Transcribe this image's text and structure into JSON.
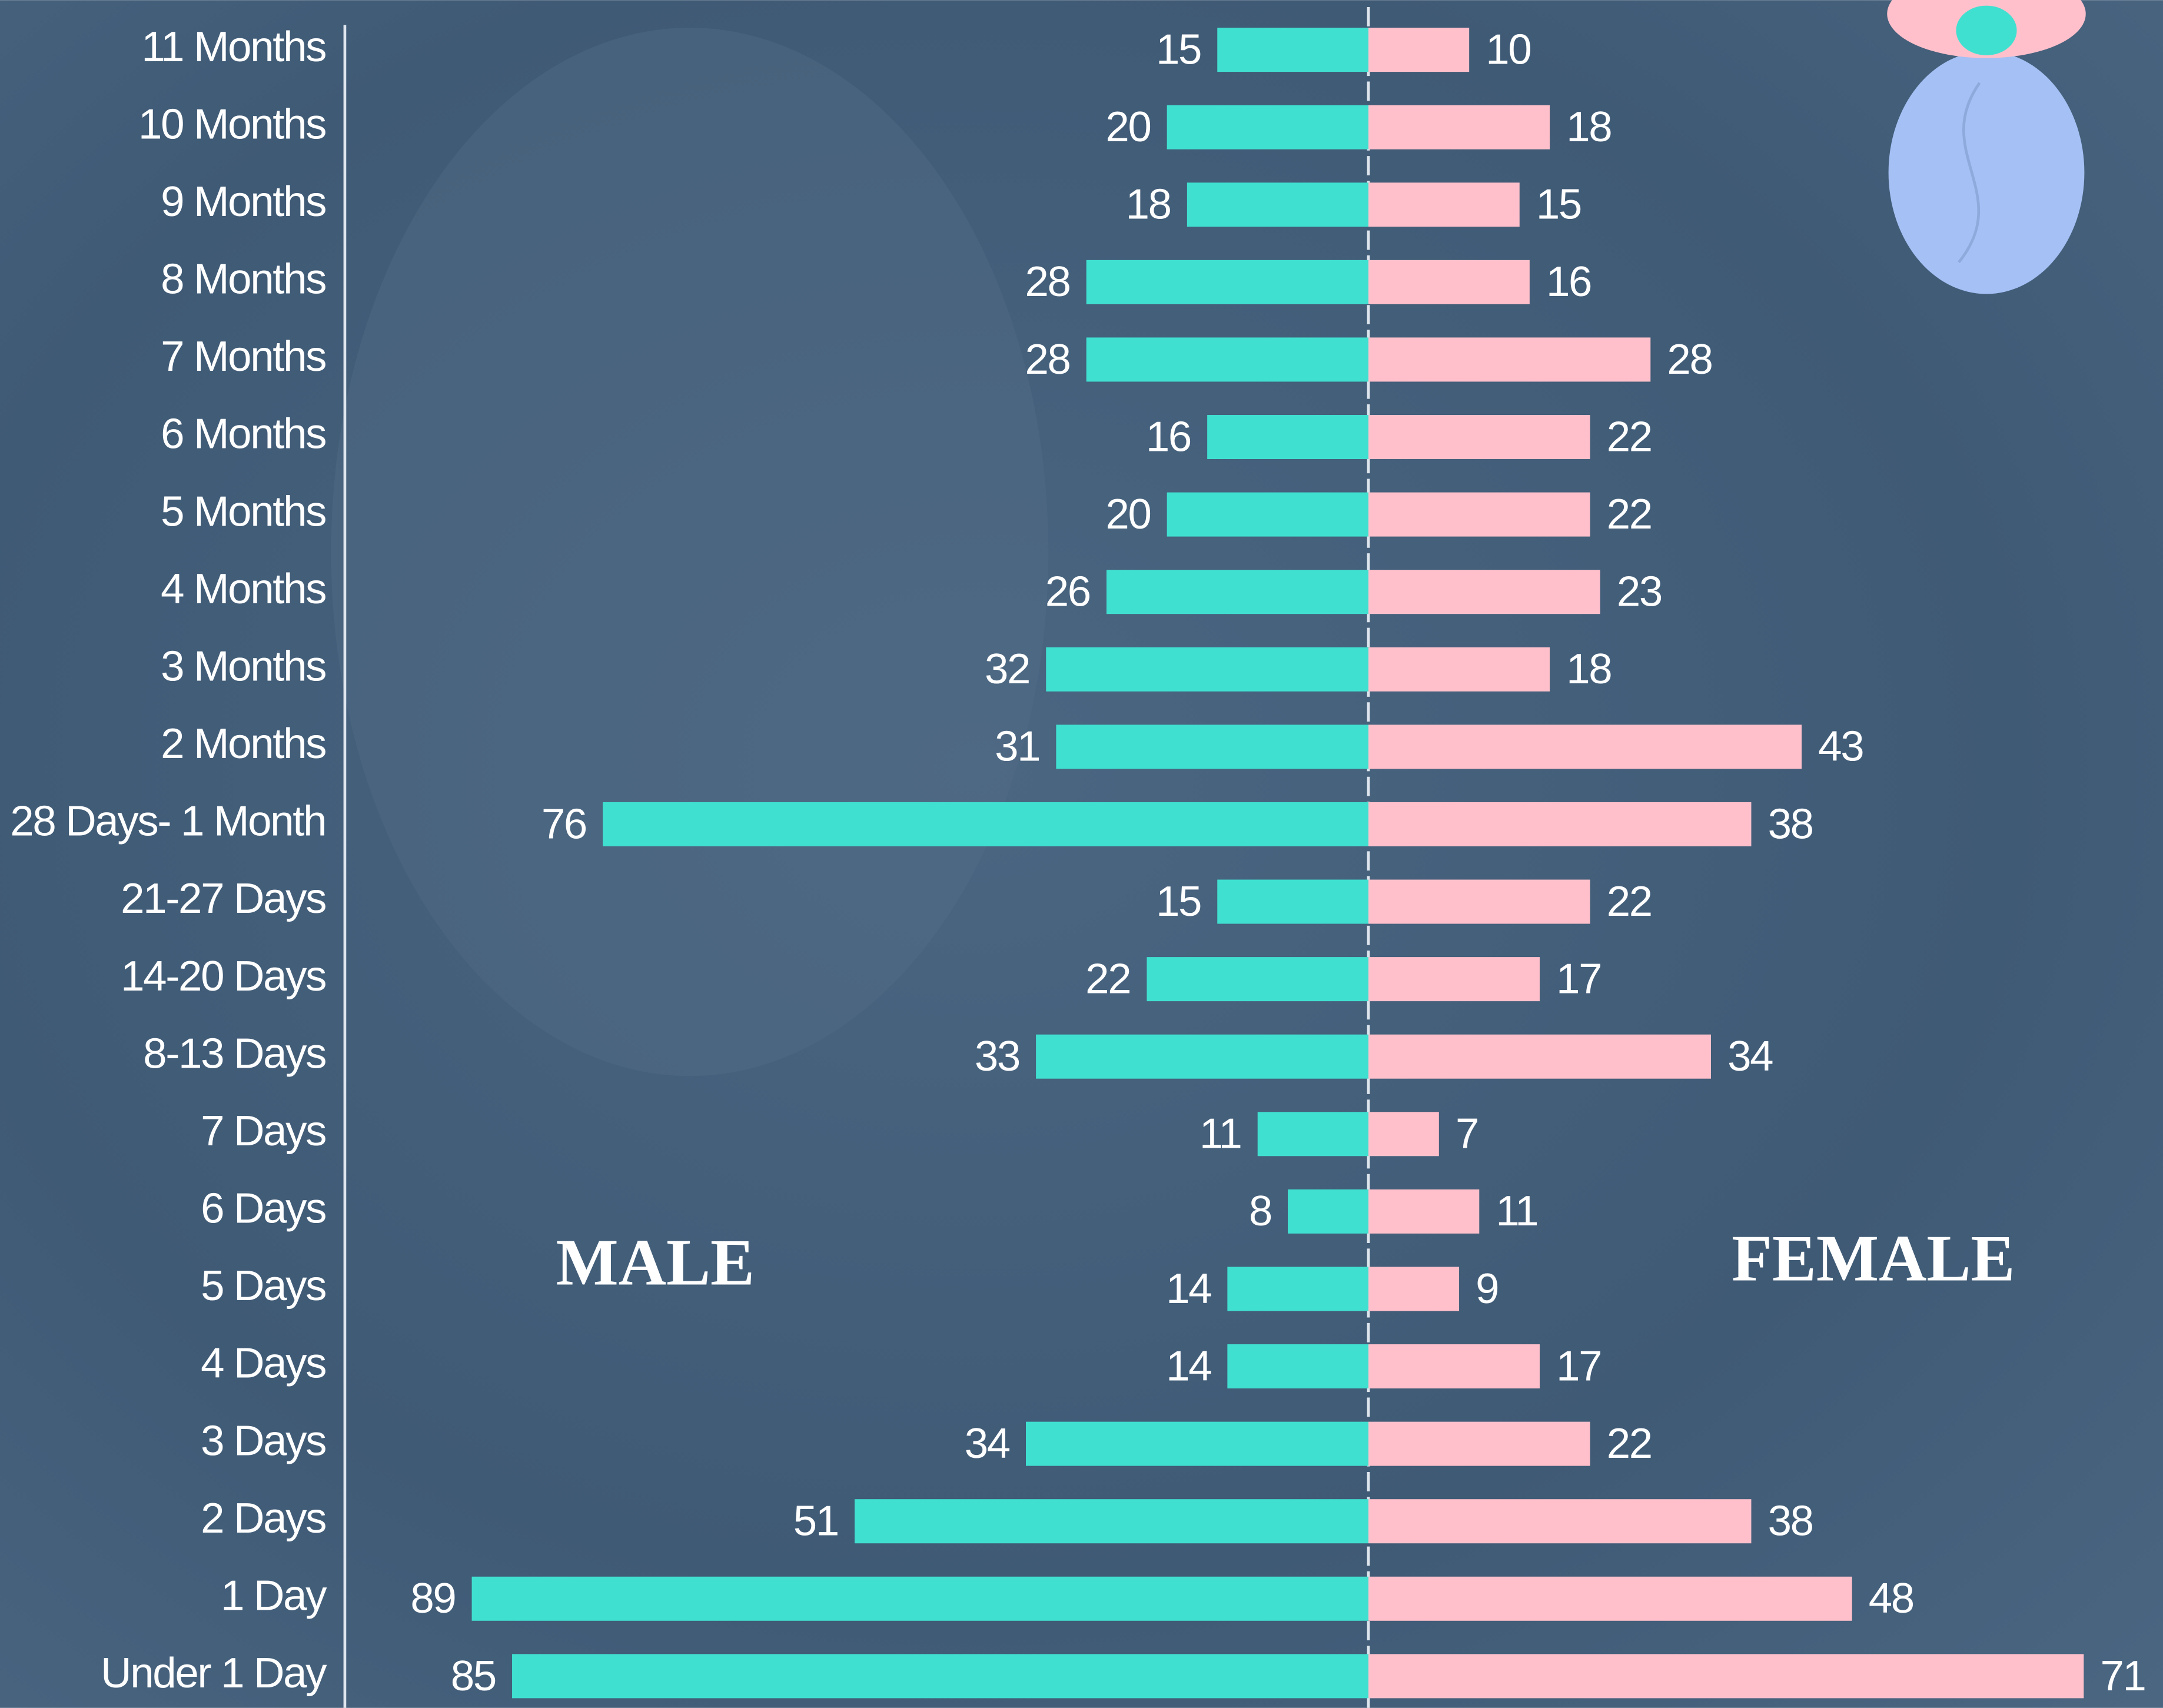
{
  "chart_data": {
    "type": "pyramid",
    "categories": [
      "11 Months",
      "10 Months",
      "9 Months",
      "8 Months",
      "7 Months",
      "6 Months",
      "5 Months",
      "4 Months",
      "3 Months",
      "2 Months",
      "28 Days- 1 Month",
      "21-27 Days",
      "14-20 Days",
      "8-13 Days",
      "7 Days",
      "6 Days",
      "5 Days",
      "4 Days",
      "3 Days",
      "2 Days",
      "1 Day",
      "Under 1 Day"
    ],
    "series": [
      {
        "name": "MALE",
        "color": "#40e0d0",
        "values": [
          15,
          20,
          18,
          28,
          28,
          16,
          20,
          26,
          32,
          31,
          76,
          15,
          22,
          33,
          11,
          8,
          14,
          14,
          34,
          51,
          89,
          85
        ]
      },
      {
        "name": "FEMALE",
        "color": "#ffc0cb",
        "values": [
          10,
          18,
          15,
          16,
          28,
          22,
          22,
          23,
          18,
          43,
          38,
          22,
          17,
          34,
          7,
          11,
          9,
          17,
          22,
          38,
          48,
          71
        ]
      }
    ]
  }
}
